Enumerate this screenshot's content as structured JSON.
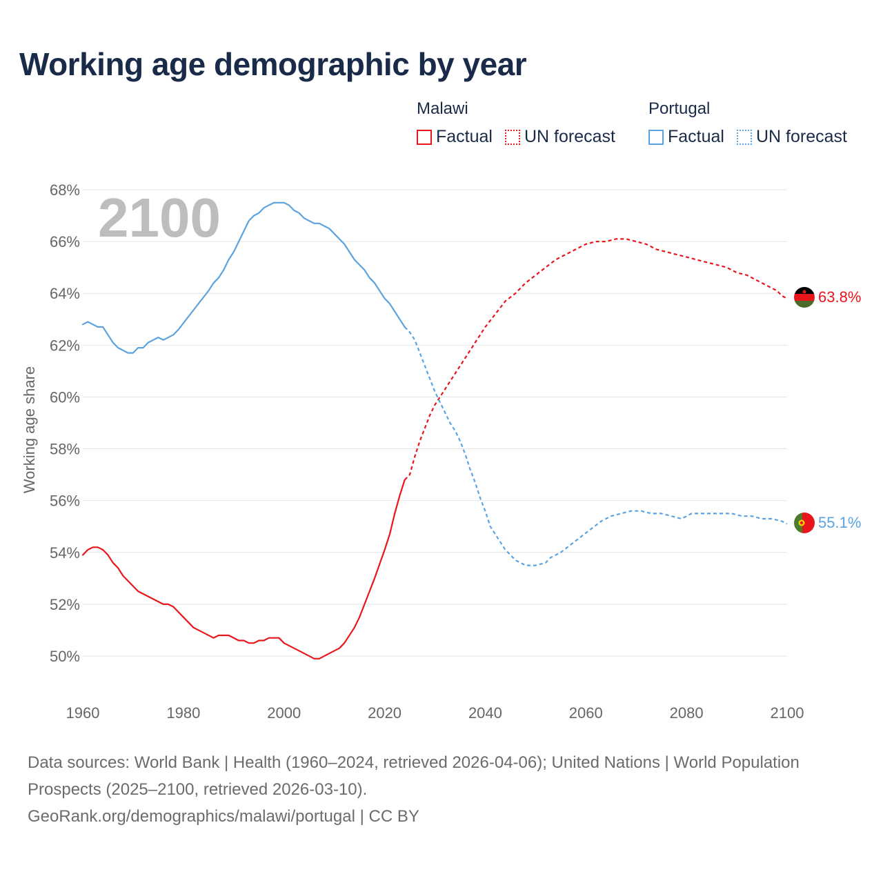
{
  "title": "Working age demographic by year",
  "legend": {
    "malawi": {
      "name": "Malawi",
      "factual": "Factual",
      "forecast": "UN forecast",
      "color": "#e8161b"
    },
    "portugal": {
      "name": "Portugal",
      "factual": "Factual",
      "forecast": "UN forecast",
      "color": "#5ba3e0"
    }
  },
  "footer": {
    "sources": "Data sources: World Bank | Health (1960–2024, retrieved 2026-04-06); United Nations | World Population Prospects (2025–2100, retrieved 2026-03-10).",
    "credit": "GeoRank.org/demographics/malawi/portugal | CC BY"
  },
  "chart_data": {
    "type": "line",
    "title": "Working age demographic by year",
    "year_watermark": "2100",
    "xlabel": "",
    "ylabel": "Working age share",
    "xlim": [
      1960,
      2100
    ],
    "ylim": [
      49,
      68
    ],
    "x_ticks": [
      1960,
      1980,
      2000,
      2020,
      2040,
      2060,
      2080,
      2100
    ],
    "y_ticks": [
      50,
      52,
      54,
      56,
      58,
      60,
      62,
      64,
      66,
      68
    ],
    "y_tick_labels": [
      "50%",
      "52%",
      "54%",
      "56%",
      "58%",
      "60%",
      "62%",
      "64%",
      "66%",
      "68%"
    ],
    "factual_end_year": 2024,
    "series": [
      {
        "name": "Malawi",
        "color": "#e8161b",
        "end_label": "63.8%",
        "points": [
          [
            1960,
            53.9
          ],
          [
            1961,
            54.1
          ],
          [
            1962,
            54.2
          ],
          [
            1963,
            54.2
          ],
          [
            1964,
            54.1
          ],
          [
            1965,
            53.9
          ],
          [
            1966,
            53.6
          ],
          [
            1967,
            53.4
          ],
          [
            1968,
            53.1
          ],
          [
            1970,
            52.7
          ],
          [
            1971,
            52.5
          ],
          [
            1973,
            52.3
          ],
          [
            1975,
            52.1
          ],
          [
            1976,
            52.0
          ],
          [
            1977,
            52.0
          ],
          [
            1978,
            51.9
          ],
          [
            1980,
            51.5
          ],
          [
            1982,
            51.1
          ],
          [
            1984,
            50.9
          ],
          [
            1986,
            50.7
          ],
          [
            1987,
            50.8
          ],
          [
            1989,
            50.8
          ],
          [
            1991,
            50.6
          ],
          [
            1992,
            50.6
          ],
          [
            1993,
            50.5
          ],
          [
            1994,
            50.5
          ],
          [
            1995,
            50.6
          ],
          [
            1996,
            50.6
          ],
          [
            1997,
            50.7
          ],
          [
            1999,
            50.7
          ],
          [
            2000,
            50.5
          ],
          [
            2002,
            50.3
          ],
          [
            2004,
            50.1
          ],
          [
            2006,
            49.9
          ],
          [
            2007,
            49.9
          ],
          [
            2009,
            50.1
          ],
          [
            2011,
            50.3
          ],
          [
            2012,
            50.5
          ],
          [
            2014,
            51.1
          ],
          [
            2015,
            51.5
          ],
          [
            2017,
            52.5
          ],
          [
            2018,
            53.0
          ],
          [
            2020,
            54.1
          ],
          [
            2021,
            54.7
          ],
          [
            2022,
            55.5
          ],
          [
            2023,
            56.2
          ],
          [
            2024,
            56.8
          ],
          [
            2025,
            57.0
          ],
          [
            2026,
            57.7
          ],
          [
            2027,
            58.3
          ],
          [
            2028,
            58.8
          ],
          [
            2029,
            59.3
          ],
          [
            2030,
            59.7
          ],
          [
            2032,
            60.3
          ],
          [
            2034,
            60.9
          ],
          [
            2036,
            61.5
          ],
          [
            2038,
            62.1
          ],
          [
            2040,
            62.7
          ],
          [
            2042,
            63.2
          ],
          [
            2044,
            63.7
          ],
          [
            2046,
            64.0
          ],
          [
            2048,
            64.4
          ],
          [
            2050,
            64.7
          ],
          [
            2052,
            65.0
          ],
          [
            2054,
            65.3
          ],
          [
            2056,
            65.5
          ],
          [
            2058,
            65.7
          ],
          [
            2060,
            65.9
          ],
          [
            2062,
            66.0
          ],
          [
            2064,
            66.0
          ],
          [
            2066,
            66.1
          ],
          [
            2068,
            66.1
          ],
          [
            2070,
            66.0
          ],
          [
            2072,
            65.9
          ],
          [
            2074,
            65.7
          ],
          [
            2076,
            65.6
          ],
          [
            2078,
            65.5
          ],
          [
            2080,
            65.4
          ],
          [
            2082,
            65.3
          ],
          [
            2084,
            65.2
          ],
          [
            2086,
            65.1
          ],
          [
            2088,
            65.0
          ],
          [
            2090,
            64.8
          ],
          [
            2092,
            64.7
          ],
          [
            2094,
            64.5
          ],
          [
            2096,
            64.3
          ],
          [
            2098,
            64.1
          ],
          [
            2099,
            63.9
          ],
          [
            2100,
            63.8
          ]
        ]
      },
      {
        "name": "Portugal",
        "color": "#5ba3e0",
        "end_label": "55.1%",
        "points": [
          [
            1960,
            62.8
          ],
          [
            1961,
            62.9
          ],
          [
            1962,
            62.8
          ],
          [
            1963,
            62.7
          ],
          [
            1964,
            62.7
          ],
          [
            1965,
            62.4
          ],
          [
            1966,
            62.1
          ],
          [
            1967,
            61.9
          ],
          [
            1969,
            61.7
          ],
          [
            1970,
            61.7
          ],
          [
            1971,
            61.9
          ],
          [
            1972,
            61.9
          ],
          [
            1973,
            62.1
          ],
          [
            1975,
            62.3
          ],
          [
            1976,
            62.2
          ],
          [
            1978,
            62.4
          ],
          [
            1979,
            62.6
          ],
          [
            1981,
            63.1
          ],
          [
            1983,
            63.6
          ],
          [
            1985,
            64.1
          ],
          [
            1986,
            64.4
          ],
          [
            1987,
            64.6
          ],
          [
            1988,
            64.9
          ],
          [
            1989,
            65.3
          ],
          [
            1990,
            65.6
          ],
          [
            1991,
            66.0
          ],
          [
            1992,
            66.4
          ],
          [
            1993,
            66.8
          ],
          [
            1994,
            67.0
          ],
          [
            1995,
            67.1
          ],
          [
            1996,
            67.3
          ],
          [
            1997,
            67.4
          ],
          [
            1998,
            67.5
          ],
          [
            2000,
            67.5
          ],
          [
            2001,
            67.4
          ],
          [
            2002,
            67.2
          ],
          [
            2003,
            67.1
          ],
          [
            2004,
            66.9
          ],
          [
            2005,
            66.8
          ],
          [
            2006,
            66.7
          ],
          [
            2007,
            66.7
          ],
          [
            2008,
            66.6
          ],
          [
            2009,
            66.5
          ],
          [
            2010,
            66.3
          ],
          [
            2012,
            65.9
          ],
          [
            2013,
            65.6
          ],
          [
            2014,
            65.3
          ],
          [
            2016,
            64.9
          ],
          [
            2017,
            64.6
          ],
          [
            2018,
            64.4
          ],
          [
            2019,
            64.1
          ],
          [
            2020,
            63.8
          ],
          [
            2021,
            63.6
          ],
          [
            2022,
            63.3
          ],
          [
            2023,
            63.0
          ],
          [
            2024,
            62.7
          ],
          [
            2025,
            62.5
          ],
          [
            2026,
            62.2
          ],
          [
            2027,
            61.7
          ],
          [
            2028,
            61.2
          ],
          [
            2029,
            60.7
          ],
          [
            2030,
            60.2
          ],
          [
            2031,
            59.8
          ],
          [
            2032,
            59.4
          ],
          [
            2033,
            59.0
          ],
          [
            2034,
            58.7
          ],
          [
            2035,
            58.3
          ],
          [
            2036,
            57.8
          ],
          [
            2037,
            57.2
          ],
          [
            2038,
            56.7
          ],
          [
            2039,
            56.1
          ],
          [
            2040,
            55.6
          ],
          [
            2041,
            55.0
          ],
          [
            2042,
            54.7
          ],
          [
            2043,
            54.4
          ],
          [
            2044,
            54.1
          ],
          [
            2045,
            53.9
          ],
          [
            2046,
            53.7
          ],
          [
            2047,
            53.6
          ],
          [
            2048,
            53.5
          ],
          [
            2050,
            53.5
          ],
          [
            2052,
            53.6
          ],
          [
            2053,
            53.8
          ],
          [
            2055,
            54.0
          ],
          [
            2057,
            54.3
          ],
          [
            2059,
            54.6
          ],
          [
            2061,
            54.9
          ],
          [
            2063,
            55.2
          ],
          [
            2065,
            55.4
          ],
          [
            2067,
            55.5
          ],
          [
            2069,
            55.6
          ],
          [
            2071,
            55.6
          ],
          [
            2073,
            55.5
          ],
          [
            2075,
            55.5
          ],
          [
            2077,
            55.4
          ],
          [
            2079,
            55.3
          ],
          [
            2081,
            55.5
          ],
          [
            2083,
            55.5
          ],
          [
            2085,
            55.5
          ],
          [
            2087,
            55.5
          ],
          [
            2089,
            55.5
          ],
          [
            2091,
            55.4
          ],
          [
            2093,
            55.4
          ],
          [
            2095,
            55.3
          ],
          [
            2097,
            55.3
          ],
          [
            2099,
            55.2
          ],
          [
            2100,
            55.1
          ]
        ]
      }
    ]
  }
}
